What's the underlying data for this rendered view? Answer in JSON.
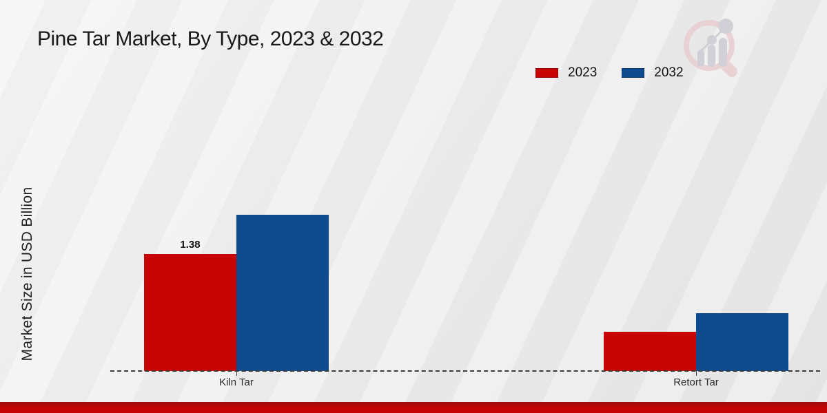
{
  "chart_data": {
    "type": "bar",
    "title": "Pine Tar Market, By Type, 2023 & 2032",
    "ylabel": "Market Size in USD Billion",
    "xlabel": "",
    "categories": [
      "Kiln Tar",
      "Retort Tar"
    ],
    "series": [
      {
        "name": "2023",
        "color": "#c80505",
        "values": [
          1.38,
          0.46
        ],
        "value_labels": [
          "1.38",
          ""
        ]
      },
      {
        "name": "2032",
        "color": "#0f4c8f",
        "values": [
          1.84,
          0.68
        ],
        "value_labels": [
          "",
          ""
        ]
      }
    ],
    "ylim": [
      0,
      2.0
    ],
    "grid": false,
    "legend_position": "top-right",
    "baseline_style": "dashed",
    "annotations": [
      "1.38"
    ]
  },
  "branding": {
    "accent_bar_color": "#c40505",
    "watermark": "bar-chart-magnifier-logo"
  }
}
